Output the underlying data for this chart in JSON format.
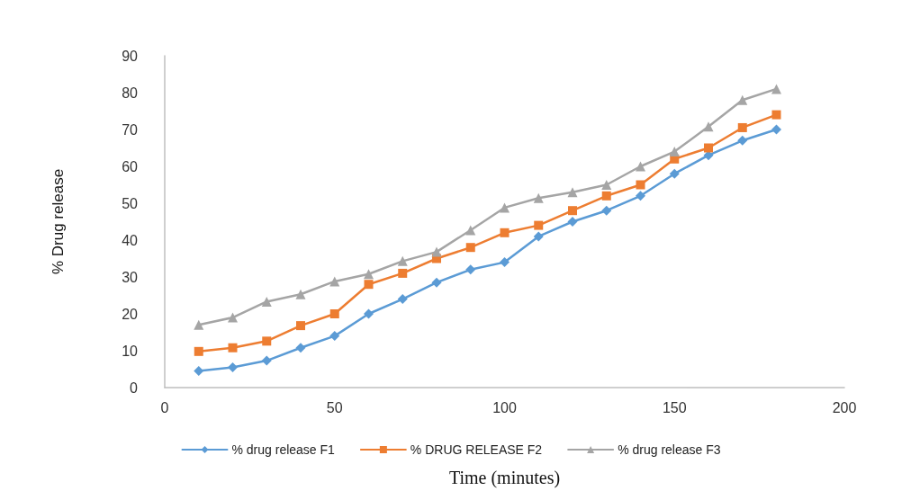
{
  "chart_data": {
    "type": "line",
    "xlabel": "Time (minutes)",
    "ylabel": "% Drug release",
    "x": [
      10,
      20,
      30,
      40,
      50,
      60,
      70,
      80,
      90,
      100,
      110,
      120,
      130,
      140,
      150,
      160,
      170,
      180
    ],
    "series": [
      {
        "name": "% drug release F1",
        "color": "#5b9bd5",
        "marker": "diamond",
        "values": [
          4.5,
          5.5,
          7.3,
          10.8,
          14,
          20,
          24,
          28.5,
          32,
          34,
          41,
          45,
          48,
          52,
          58,
          63,
          67,
          70
        ]
      },
      {
        "name": "% DRUG RELEASE F2",
        "color": "#ed7d31",
        "marker": "square",
        "values": [
          9.8,
          10.8,
          12.6,
          16.8,
          20,
          28,
          31,
          35,
          38,
          42,
          44,
          48,
          52,
          55,
          62,
          65,
          70.5,
          74
        ]
      },
      {
        "name": "% drug release F3",
        "color": "#a5a5a5",
        "marker": "triangle",
        "values": [
          17,
          19,
          23.3,
          25.3,
          28.8,
          30.8,
          34.3,
          36.8,
          42.7,
          48.8,
          51.4,
          53,
          55,
          60,
          64,
          70.8,
          78,
          81
        ]
      }
    ],
    "xlim": [
      0,
      200
    ],
    "xticks": [
      0,
      50,
      100,
      150,
      200
    ],
    "ylim": [
      0,
      90
    ],
    "yticks": [
      0,
      10,
      20,
      30,
      40,
      50,
      60,
      70,
      80,
      90
    ],
    "grid": false,
    "legend": "bottom"
  }
}
